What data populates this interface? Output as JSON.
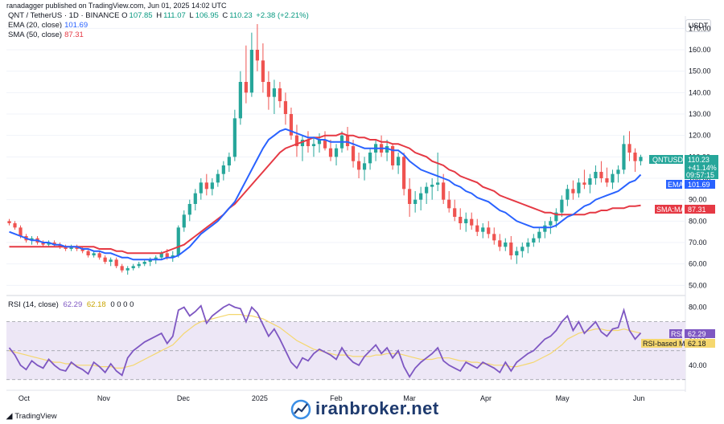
{
  "header": {
    "published": "ranadagger published on TradingView.com, Jun 01, 2025 14:02 UTC",
    "symbol": "QNT / TetherUS · 1D · BINANCE",
    "ohlc": {
      "o_label": "O",
      "o": "107.85",
      "h_label": "H",
      "h": "111.07",
      "l_label": "L",
      "l": "106.95",
      "c_label": "C",
      "c": "110.23",
      "change": "+2.38 (+2.21%)"
    },
    "ema_label": "EMA (20, close)",
    "ema_value": "101.69",
    "sma_label": "SMA (50, close)",
    "sma_value": "87.31",
    "rsi_label": "RSI (14, close)",
    "rsi_value": "62.29",
    "rsi_ma_value": "62.18",
    "rsi_extra": "0 0 0 0"
  },
  "currency": "USDT",
  "tags": {
    "symbol": "QNTUSDT",
    "price": "110.23",
    "change": "+41.14%",
    "countdown": "09:57:15",
    "ema_name": "EMA",
    "ema": "101.69",
    "sma_name": "SMA:MA",
    "sma": "87.31",
    "rsi_name": "RSI",
    "rsi": "62.29",
    "rsi_ma_name": "RSI-based MA",
    "rsi_ma": "62.18"
  },
  "colors": {
    "up": "#26a69a",
    "down": "#ef5350",
    "ema": "#2962ff",
    "sma": "#e53944",
    "rsi": "#7e57c2",
    "rsi_ma": "#f5d76e",
    "band": "#ede7f6"
  },
  "footer": {
    "brand": "TradingView",
    "watermark": "iranbroker.net"
  },
  "chart_data": {
    "type": "candlestick",
    "price_axis": {
      "ticks": [
        50,
        60,
        70,
        80,
        90,
        100,
        110,
        120,
        130,
        140,
        150,
        160,
        170
      ],
      "ylim": [
        46,
        172
      ]
    },
    "x_ticks": [
      "Oct",
      "Nov",
      "Dec",
      "2025",
      "Feb",
      "Mar",
      "Apr",
      "May",
      "Jun"
    ],
    "rsi_axis": {
      "ticks": [
        40,
        60,
        80
      ],
      "ylim": [
        26,
        87
      ],
      "bands": [
        30,
        70
      ]
    },
    "candles_ohlc": [
      [
        80,
        81,
        78,
        79
      ],
      [
        79,
        80,
        76,
        77
      ],
      [
        77,
        78,
        72,
        73
      ],
      [
        73,
        74,
        70,
        71
      ],
      [
        71,
        73,
        69,
        72
      ],
      [
        72,
        73,
        69,
        70
      ],
      [
        70,
        71,
        68,
        69
      ],
      [
        69,
        71,
        68,
        70
      ],
      [
        70,
        71,
        68,
        69
      ],
      [
        69,
        70,
        67,
        68
      ],
      [
        68,
        69,
        66,
        67
      ],
      [
        67,
        69,
        66,
        68
      ],
      [
        68,
        69,
        66,
        67
      ],
      [
        67,
        68,
        65,
        66
      ],
      [
        66,
        67,
        63,
        64
      ],
      [
        64,
        66,
        63,
        65
      ],
      [
        65,
        66,
        62,
        63
      ],
      [
        63,
        64,
        60,
        61
      ],
      [
        61,
        63,
        59,
        62
      ],
      [
        62,
        63,
        58,
        59
      ],
      [
        59,
        60,
        56,
        57
      ],
      [
        57,
        59,
        55,
        58
      ],
      [
        58,
        60,
        57,
        59
      ],
      [
        59,
        61,
        58,
        60
      ],
      [
        60,
        62,
        59,
        61
      ],
      [
        61,
        63,
        59,
        62
      ],
      [
        62,
        64,
        60,
        63
      ],
      [
        63,
        66,
        62,
        65
      ],
      [
        65,
        67,
        62,
        63
      ],
      [
        63,
        66,
        61,
        64
      ],
      [
        64,
        78,
        63,
        77
      ],
      [
        77,
        85,
        75,
        83
      ],
      [
        83,
        90,
        80,
        88
      ],
      [
        88,
        95,
        85,
        93
      ],
      [
        93,
        100,
        90,
        98
      ],
      [
        98,
        102,
        92,
        95
      ],
      [
        95,
        100,
        92,
        98
      ],
      [
        98,
        104,
        96,
        102
      ],
      [
        102,
        108,
        99,
        106
      ],
      [
        106,
        112,
        103,
        110
      ],
      [
        110,
        132,
        108,
        128
      ],
      [
        128,
        150,
        125,
        145
      ],
      [
        145,
        162,
        135,
        140
      ],
      [
        140,
        168,
        138,
        160
      ],
      [
        160,
        172,
        150,
        155
      ],
      [
        155,
        163,
        140,
        145
      ],
      [
        145,
        150,
        132,
        138
      ],
      [
        138,
        146,
        130,
        142
      ],
      [
        142,
        145,
        133,
        136
      ],
      [
        136,
        140,
        125,
        130
      ],
      [
        130,
        133,
        118,
        120
      ],
      [
        120,
        125,
        110,
        115
      ],
      [
        115,
        120,
        108,
        118
      ],
      [
        118,
        122,
        112,
        115
      ],
      [
        115,
        119,
        110,
        116
      ],
      [
        116,
        121,
        112,
        118
      ],
      [
        118,
        122,
        113,
        114
      ],
      [
        114,
        118,
        108,
        110
      ],
      [
        110,
        116,
        106,
        114
      ],
      [
        114,
        122,
        112,
        120
      ],
      [
        120,
        124,
        113,
        115
      ],
      [
        115,
        118,
        105,
        108
      ],
      [
        108,
        112,
        100,
        104
      ],
      [
        104,
        110,
        99,
        107
      ],
      [
        107,
        114,
        104,
        112
      ],
      [
        112,
        118,
        108,
        116
      ],
      [
        116,
        120,
        110,
        112
      ],
      [
        112,
        118,
        108,
        115
      ],
      [
        115,
        116,
        104,
        106
      ],
      [
        106,
        112,
        102,
        110
      ],
      [
        110,
        112,
        92,
        95
      ],
      [
        95,
        100,
        82,
        88
      ],
      [
        88,
        94,
        84,
        90
      ],
      [
        90,
        96,
        85,
        93
      ],
      [
        93,
        98,
        88,
        96
      ],
      [
        96,
        100,
        90,
        97
      ],
      [
        97,
        112,
        94,
        98
      ],
      [
        98,
        102,
        88,
        90
      ],
      [
        90,
        94,
        84,
        86
      ],
      [
        86,
        90,
        80,
        82
      ],
      [
        82,
        86,
        76,
        79
      ],
      [
        79,
        84,
        75,
        81
      ],
      [
        81,
        84,
        76,
        78
      ],
      [
        78,
        81,
        73,
        75
      ],
      [
        75,
        79,
        72,
        77
      ],
      [
        77,
        80,
        72,
        74
      ],
      [
        74,
        77,
        69,
        71
      ],
      [
        71,
        74,
        66,
        68
      ],
      [
        68,
        72,
        66,
        70
      ],
      [
        70,
        73,
        62,
        64
      ],
      [
        64,
        68,
        60,
        66
      ],
      [
        66,
        70,
        63,
        68
      ],
      [
        68,
        72,
        65,
        70
      ],
      [
        70,
        74,
        68,
        72
      ],
      [
        72,
        77,
        70,
        75
      ],
      [
        75,
        80,
        72,
        78
      ],
      [
        78,
        82,
        74,
        80
      ],
      [
        80,
        86,
        77,
        84
      ],
      [
        84,
        92,
        82,
        90
      ],
      [
        90,
        97,
        87,
        95
      ],
      [
        95,
        99,
        90,
        93
      ],
      [
        93,
        100,
        91,
        98
      ],
      [
        98,
        104,
        95,
        97
      ],
      [
        97,
        102,
        93,
        100
      ],
      [
        100,
        106,
        97,
        103
      ],
      [
        103,
        108,
        98,
        100
      ],
      [
        100,
        105,
        96,
        98
      ],
      [
        98,
        104,
        95,
        102
      ],
      [
        102,
        106,
        98,
        104
      ],
      [
        104,
        120,
        102,
        116
      ],
      [
        116,
        122,
        108,
        112
      ],
      [
        112,
        114,
        103,
        108
      ],
      [
        108,
        111,
        106,
        110
      ]
    ],
    "ema20": [
      75,
      74,
      73,
      72,
      71,
      71,
      70,
      70,
      69,
      69,
      68,
      68,
      68,
      67,
      67,
      66,
      66,
      65,
      65,
      64,
      63,
      63,
      62,
      62,
      62,
      62,
      62,
      62,
      63,
      63,
      64,
      66,
      68,
      71,
      74,
      76,
      78,
      80,
      83,
      86,
      89,
      94,
      99,
      104,
      109,
      114,
      118,
      120,
      122,
      123,
      122,
      121,
      120,
      119,
      119,
      118,
      118,
      117,
      117,
      117,
      117,
      116,
      115,
      114,
      114,
      114,
      114,
      114,
      113,
      113,
      111,
      108,
      106,
      104,
      103,
      102,
      101,
      100,
      99,
      97,
      96,
      94,
      93,
      91,
      90,
      89,
      87,
      85,
      84,
      82,
      80,
      79,
      78,
      77,
      77,
      77,
      77,
      78,
      80,
      82,
      83,
      85,
      87,
      88,
      90,
      91,
      92,
      93,
      94,
      96,
      98,
      99,
      101.69
    ],
    "sma50": [
      68,
      68,
      68,
      68,
      68,
      68,
      68,
      68,
      68,
      68,
      68,
      68,
      68,
      68,
      68,
      68,
      67,
      67,
      67,
      66,
      66,
      65,
      65,
      65,
      65,
      65,
      65,
      65,
      66,
      67,
      68,
      69,
      71,
      73,
      75,
      77,
      79,
      81,
      83,
      86,
      88,
      91,
      94,
      97,
      100,
      103,
      106,
      109,
      112,
      114,
      115,
      116,
      117,
      118,
      119,
      119,
      120,
      120,
      120,
      121,
      120,
      120,
      119,
      119,
      118,
      118,
      117,
      117,
      116,
      116,
      115,
      114,
      112,
      111,
      110,
      108,
      107,
      106,
      104,
      103,
      101,
      100,
      99,
      98,
      96,
      95,
      94,
      92,
      91,
      90,
      89,
      88,
      87,
      86,
      85,
      84,
      84,
      83,
      83,
      83,
      83,
      83,
      83,
      84,
      84,
      85,
      85,
      86,
      86,
      86,
      87,
      87,
      87.31
    ],
    "rsi14": [
      52,
      47,
      40,
      37,
      43,
      40,
      38,
      44,
      40,
      37,
      36,
      42,
      39,
      37,
      34,
      42,
      39,
      35,
      41,
      36,
      33,
      45,
      50,
      53,
      56,
      58,
      60,
      62,
      55,
      60,
      78,
      80,
      74,
      77,
      81,
      69,
      74,
      77,
      80,
      82,
      80,
      79,
      70,
      80,
      76,
      68,
      60,
      65,
      58,
      50,
      42,
      38,
      45,
      43,
      48,
      51,
      49,
      47,
      44,
      52,
      46,
      42,
      40,
      46,
      50,
      54,
      48,
      52,
      45,
      50,
      39,
      32,
      38,
      42,
      45,
      48,
      52,
      43,
      40,
      38,
      36,
      42,
      40,
      38,
      42,
      40,
      38,
      35,
      42,
      36,
      42,
      45,
      48,
      50,
      54,
      58,
      60,
      64,
      70,
      74,
      64,
      70,
      62,
      66,
      70,
      63,
      60,
      65,
      66,
      78,
      64,
      58,
      62.29
    ],
    "rsi_ma": [
      50,
      49,
      48,
      47,
      46,
      45,
      44,
      43,
      42,
      42,
      41,
      41,
      40,
      40,
      40,
      40,
      39,
      39,
      39,
      38,
      38,
      39,
      40,
      42,
      44,
      46,
      48,
      50,
      52,
      54,
      58,
      62,
      65,
      68,
      70,
      71,
      72,
      73,
      74,
      75,
      75,
      75,
      74,
      74,
      73,
      72,
      70,
      68,
      66,
      63,
      60,
      57,
      55,
      53,
      51,
      50,
      49,
      48,
      47,
      47,
      47,
      46,
      46,
      46,
      46,
      47,
      47,
      48,
      48,
      48,
      47,
      46,
      45,
      44,
      44,
      44,
      45,
      45,
      45,
      44,
      43,
      43,
      42,
      42,
      41,
      41,
      40,
      40,
      40,
      39,
      39,
      40,
      41,
      42,
      44,
      46,
      48,
      51,
      54,
      58,
      60,
      62,
      63,
      64,
      65,
      65,
      64,
      64,
      64,
      65,
      64,
      63,
      62.18
    ]
  }
}
